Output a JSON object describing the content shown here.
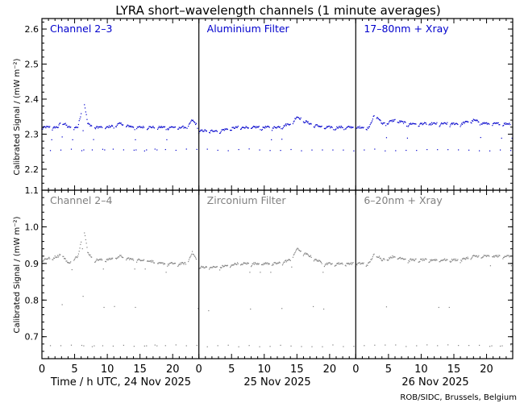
{
  "title": "LYRA short–wavelength channels (1 minute averages)",
  "credit": "ROB/SIDC, Brussels, Belgium",
  "ylabel": "Calibrated Signal / (mW m⁻²)",
  "xaxis": {
    "tick_labels": [
      "0",
      "5",
      "10",
      "15",
      "20"
    ],
    "day_labels": [
      "Time / h UTC, 24 Nov 2025",
      "25 Nov 2025",
      "26 Nov 2025"
    ]
  },
  "colors": {
    "top_series": "#0000cc",
    "bottom_series": "#808080",
    "axes": "#000000"
  },
  "chart_data": [
    {
      "type": "scatter",
      "panel": "top",
      "ylim": [
        2.14,
        2.63
      ],
      "yticks": [
        "2.2",
        "2.3",
        "2.4",
        "2.5",
        "2.6"
      ],
      "x_units": "hours UTC from 24 Nov 2025 00:00",
      "xlim": [
        0,
        72
      ],
      "series": [
        {
          "name": "Channel 2–3",
          "x": [
            0,
            2.5,
            3,
            4,
            5.5,
            6,
            6.5,
            7,
            8,
            10,
            12,
            14,
            16,
            18,
            20,
            22,
            23,
            24
          ],
          "y": [
            2.32,
            2.32,
            2.34,
            2.32,
            2.32,
            2.36,
            2.39,
            2.33,
            2.32,
            2.32,
            2.33,
            2.32,
            2.32,
            2.32,
            2.32,
            2.32,
            2.34,
            2.32
          ]
        },
        {
          "name": "Aluminium Filter",
          "x": [
            24,
            27,
            30,
            33,
            36,
            38,
            39,
            40,
            41,
            43,
            45,
            48
          ],
          "y": [
            2.31,
            2.31,
            2.32,
            2.32,
            2.32,
            2.33,
            2.35,
            2.34,
            2.33,
            2.32,
            2.32,
            2.32
          ]
        },
        {
          "name": "17–80nm + Xray",
          "x": [
            48,
            50,
            51,
            52,
            54,
            56,
            58,
            60,
            62,
            64,
            66,
            68,
            70,
            72
          ],
          "y": [
            2.32,
            2.32,
            2.36,
            2.33,
            2.34,
            2.33,
            2.33,
            2.33,
            2.33,
            2.33,
            2.34,
            2.33,
            2.33,
            2.33
          ]
        }
      ],
      "dip_level": 2.255,
      "dip_period_h": 1.6
    },
    {
      "type": "scatter",
      "panel": "bottom",
      "ylim": [
        0.64,
        1.1
      ],
      "yticks": [
        "0.7",
        "0.8",
        "0.9",
        "1.0",
        "1.1"
      ],
      "x_units": "hours UTC from 24 Nov 2025 00:00",
      "xlim": [
        0,
        72
      ],
      "series": [
        {
          "name": "Channel 2–4",
          "x": [
            0,
            2.5,
            3,
            4,
            5.5,
            6,
            6.5,
            7,
            8,
            10,
            12,
            14,
            16,
            18,
            20,
            22,
            23,
            24
          ],
          "y": [
            0.91,
            0.92,
            0.93,
            0.9,
            0.92,
            0.96,
            0.99,
            0.93,
            0.91,
            0.91,
            0.92,
            0.91,
            0.91,
            0.9,
            0.9,
            0.9,
            0.93,
            0.9
          ]
        },
        {
          "name": "Zirconium Filter",
          "x": [
            24,
            27,
            30,
            33,
            36,
            38,
            39,
            40,
            41,
            43,
            45,
            48
          ],
          "y": [
            0.89,
            0.89,
            0.9,
            0.9,
            0.9,
            0.91,
            0.94,
            0.93,
            0.92,
            0.9,
            0.9,
            0.9
          ]
        },
        {
          "name": "6–20nm + Xray",
          "x": [
            48,
            50,
            51,
            52,
            54,
            56,
            58,
            60,
            62,
            64,
            66,
            68,
            70,
            72
          ],
          "y": [
            0.9,
            0.9,
            0.93,
            0.91,
            0.92,
            0.91,
            0.91,
            0.91,
            0.91,
            0.91,
            0.92,
            0.92,
            0.92,
            0.92
          ]
        }
      ],
      "dip_level": 0.675,
      "dip_period_h": 1.6
    }
  ]
}
